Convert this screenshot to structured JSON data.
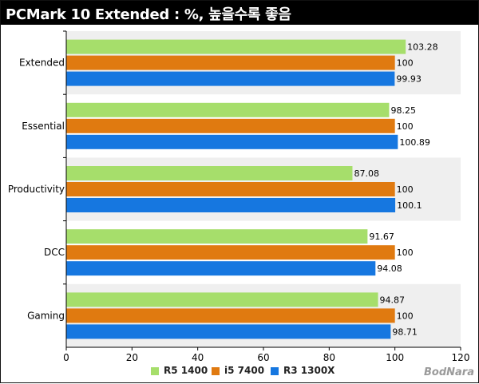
{
  "title": "PCMark 10 Extended : %, 높을수록 좋음",
  "watermark": "BodNara",
  "chart_data": {
    "type": "bar",
    "orientation": "horizontal",
    "title": "PCMark 10 Extended : %, 높을수록 좋음",
    "categories": [
      "Extended",
      "Essential",
      "Productivity",
      "DCC",
      "Gaming"
    ],
    "series": [
      {
        "name": "R5 1400",
        "color": "#a6de6b",
        "values": [
          103.28,
          98.25,
          87.08,
          91.67,
          94.87
        ],
        "labels": [
          "103.28",
          "98.25",
          "87.08",
          "91.67",
          "94.87"
        ]
      },
      {
        "name": "i5 7400",
        "color": "#e07a10",
        "values": [
          100,
          100,
          100,
          100,
          100
        ],
        "labels": [
          "100",
          "100",
          "100",
          "100",
          "100"
        ]
      },
      {
        "name": "R3 1300X",
        "color": "#1677e0",
        "values": [
          99.93,
          100.89,
          100.1,
          94.08,
          98.71
        ],
        "labels": [
          "99.93",
          "100.89",
          "100.1",
          "94.08",
          "98.71"
        ]
      }
    ],
    "xlim": [
      0,
      120
    ],
    "xticks": [
      "0",
      "20",
      "40",
      "60",
      "80",
      "100",
      "120"
    ],
    "xtick_values": [
      0,
      20,
      40,
      60,
      80,
      100,
      120
    ],
    "band_color": "#efefef",
    "legend_position": "bottom"
  }
}
